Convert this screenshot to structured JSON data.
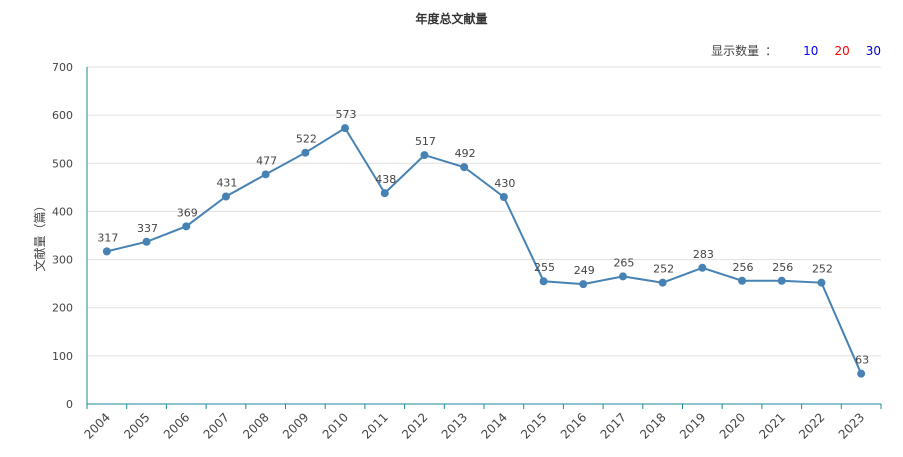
{
  "page": {
    "title": "年度总文献量"
  },
  "controls": {
    "label": "显示数量",
    "colon": "：",
    "options": [
      {
        "label": "10",
        "color": "#0000ff"
      },
      {
        "label": "20",
        "color": "#ff0000"
      },
      {
        "label": "30",
        "color": "#0000cc"
      }
    ]
  },
  "chart_data": {
    "type": "line",
    "title": "年度总文献量",
    "xlabel": "",
    "ylabel": "文献量（篇）",
    "ylim": [
      0,
      700
    ],
    "yticks": [
      0,
      100,
      200,
      300,
      400,
      500,
      600,
      700
    ],
    "grid": true,
    "line_color": "#4682b4",
    "axis_color": "#1a8a9a",
    "categories": [
      "2004",
      "2005",
      "2006",
      "2007",
      "2008",
      "2009",
      "2010",
      "2011",
      "2012",
      "2013",
      "2014",
      "2015",
      "2016",
      "2017",
      "2018",
      "2019",
      "2020",
      "2021",
      "2022",
      "2023"
    ],
    "values": [
      317,
      337,
      369,
      431,
      477,
      522,
      573,
      438,
      517,
      492,
      430,
      255,
      249,
      265,
      252,
      283,
      256,
      256,
      252,
      63
    ]
  }
}
